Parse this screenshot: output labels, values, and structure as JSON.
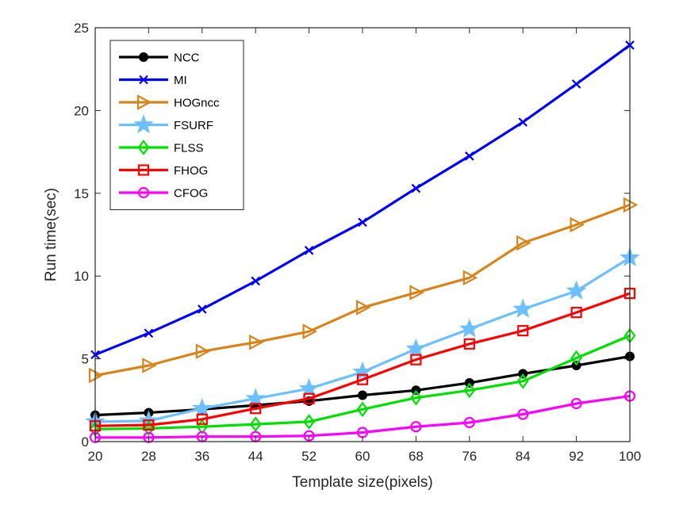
{
  "chart_data": {
    "type": "line",
    "title": "",
    "xlabel": "Template size(pixels)",
    "ylabel": "Run time(sec)",
    "x": [
      20,
      28,
      36,
      44,
      52,
      60,
      68,
      76,
      84,
      92,
      100
    ],
    "xlim": [
      20,
      100
    ],
    "ylim": [
      0,
      25
    ],
    "yticks": [
      0,
      5,
      10,
      15,
      20,
      25
    ],
    "grid": false,
    "legend_position": "top-left",
    "series": [
      {
        "name": "NCC",
        "color": "#000000",
        "marker": "circle-filled",
        "values": [
          1.6,
          1.75,
          1.95,
          2.2,
          2.45,
          2.8,
          3.1,
          3.55,
          4.1,
          4.6,
          5.15
        ]
      },
      {
        "name": "MI",
        "color": "#0000ff",
        "marker": "x",
        "values": [
          5.25,
          6.55,
          8.0,
          9.7,
          11.55,
          13.25,
          15.3,
          17.25,
          19.3,
          21.6,
          23.95
        ]
      },
      {
        "name": "HOGncc",
        "color": "#d9841a",
        "marker": "triangle-right",
        "values": [
          4.0,
          4.6,
          5.45,
          6.0,
          6.65,
          8.1,
          9.0,
          9.9,
          12.0,
          13.1,
          14.3
        ]
      },
      {
        "name": "FSURF",
        "color": "#6cc0ff",
        "marker": "star",
        "values": [
          1.2,
          1.25,
          2.0,
          2.6,
          3.2,
          4.2,
          5.6,
          6.8,
          8.0,
          9.1,
          11.1
        ]
      },
      {
        "name": "FLSS",
        "color": "#00e000",
        "marker": "diamond",
        "values": [
          0.75,
          0.8,
          0.9,
          1.05,
          1.2,
          1.95,
          2.65,
          3.1,
          3.65,
          5.05,
          6.4
        ]
      },
      {
        "name": "FHOG",
        "color": "#ff0000",
        "marker": "square",
        "values": [
          0.95,
          1.0,
          1.35,
          2.0,
          2.6,
          3.75,
          4.95,
          5.9,
          6.7,
          7.8,
          8.95
        ]
      },
      {
        "name": "CFOG",
        "color": "#ff00ff",
        "marker": "circle",
        "values": [
          0.25,
          0.25,
          0.3,
          0.3,
          0.35,
          0.55,
          0.9,
          1.15,
          1.65,
          2.3,
          2.75
        ]
      }
    ]
  }
}
